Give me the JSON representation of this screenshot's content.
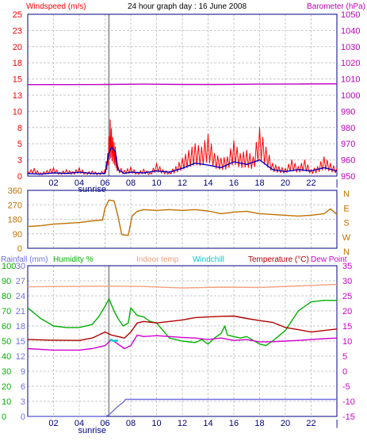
{
  "header": {
    "title": "24 hour graph day : 16 June 2008",
    "left_label": "Windspeed (m/s)",
    "right_label": "Barometer (hPa)"
  },
  "legend_bottom": {
    "rainfall": "Rainfall (mm)",
    "humidity": "Humidity %",
    "indoor": "Indoor temp",
    "windchill": "Windchill",
    "temperature": "Temperature (°C)",
    "dewpoint": "Dew Point"
  },
  "sunrise_label": "sunrise",
  "colors": {
    "frame": "#000080",
    "grid": "#c8c8c8",
    "gust": "#ff0000",
    "wind": "#0000c0",
    "barometer": "#c000c0",
    "direction": "#c07000",
    "rainfall": "#7070e0",
    "humidity": "#00b000",
    "indoor": "#f0a080",
    "windchill": "#00c8d0",
    "temperature": "#b00000",
    "dewpoint": "#d000d0",
    "sunrise_band": "#a0a0a0"
  },
  "x_ticks": [
    "02",
    "04",
    "06",
    "08",
    "10",
    "12",
    "14",
    "16",
    "18",
    "20",
    "22",
    "|"
  ],
  "chart_data": [
    {
      "type": "line",
      "name": "wind-barometer",
      "xlim": [
        0,
        24
      ],
      "left_axis": {
        "label": "Windspeed (m/s)",
        "ticks": [
          0,
          3,
          5,
          8,
          10,
          13,
          15,
          18,
          20,
          23,
          25
        ],
        "ylim": [
          0,
          25
        ]
      },
      "right_axis": {
        "label": "Barometer (hPa)",
        "ticks": [
          950,
          960,
          970,
          980,
          990,
          1000,
          1010,
          1020,
          1030,
          1040,
          1050
        ],
        "ylim": [
          950,
          1050
        ]
      },
      "sunrise_hour": 6.3,
      "series": [
        {
          "name": "gust",
          "axis": "left",
          "style": "spiky",
          "points": [
            [
              0,
              0.8
            ],
            [
              0.5,
              1.2
            ],
            [
              1,
              0.5
            ],
            [
              1.5,
              0.9
            ],
            [
              2,
              1.3
            ],
            [
              2.5,
              0.6
            ],
            [
              3,
              1.0
            ],
            [
              3.5,
              0.7
            ],
            [
              4,
              1.3
            ],
            [
              4.5,
              0.6
            ],
            [
              5,
              0.8
            ],
            [
              5.5,
              0.5
            ],
            [
              6,
              1.0
            ],
            [
              6.2,
              3.5
            ],
            [
              6.4,
              8.7
            ],
            [
              6.6,
              6.0
            ],
            [
              6.8,
              4.5
            ],
            [
              7.0,
              1.5
            ],
            [
              7.5,
              0.9
            ],
            [
              8,
              1.4
            ],
            [
              8.5,
              0.6
            ],
            [
              9,
              1.1
            ],
            [
              9.5,
              0.5
            ],
            [
              10,
              2.0
            ],
            [
              10.5,
              1.0
            ],
            [
              11,
              0.7
            ],
            [
              11.5,
              1.5
            ],
            [
              12,
              2.8
            ],
            [
              12.5,
              4.0
            ],
            [
              13,
              5.0
            ],
            [
              13.5,
              4.5
            ],
            [
              14,
              6.5
            ],
            [
              14.5,
              3.5
            ],
            [
              15,
              2.8
            ],
            [
              15.5,
              3.0
            ],
            [
              16,
              5.5
            ],
            [
              16.5,
              3.5
            ],
            [
              17,
              4.0
            ],
            [
              17.5,
              3.0
            ],
            [
              18,
              7.5
            ],
            [
              18.5,
              4.5
            ],
            [
              19,
              2.0
            ],
            [
              19.5,
              1.5
            ],
            [
              20,
              1.2
            ],
            [
              20.5,
              2.5
            ],
            [
              21,
              1.5
            ],
            [
              21.5,
              2.5
            ],
            [
              22,
              1.0
            ],
            [
              22.5,
              1.5
            ],
            [
              23,
              3.0
            ],
            [
              23.5,
              2.0
            ],
            [
              24,
              1.2
            ]
          ]
        },
        {
          "name": "wind",
          "axis": "left",
          "points": [
            [
              0,
              0.4
            ],
            [
              1,
              0.3
            ],
            [
              2,
              0.5
            ],
            [
              3,
              0.4
            ],
            [
              4,
              0.6
            ],
            [
              5,
              0.4
            ],
            [
              6,
              0.4
            ],
            [
              6.3,
              3.5
            ],
            [
              6.5,
              4.5
            ],
            [
              6.8,
              3.8
            ],
            [
              7.0,
              1.0
            ],
            [
              7.5,
              0.4
            ],
            [
              8,
              0.6
            ],
            [
              9,
              0.5
            ],
            [
              10,
              0.8
            ],
            [
              11,
              0.6
            ],
            [
              12,
              1.2
            ],
            [
              13,
              2.0
            ],
            [
              14,
              1.7
            ],
            [
              15,
              1.3
            ],
            [
              16,
              2.2
            ],
            [
              17,
              1.8
            ],
            [
              18,
              2.5
            ],
            [
              19,
              1.0
            ],
            [
              20,
              0.7
            ],
            [
              21,
              1.0
            ],
            [
              22,
              0.8
            ],
            [
              23,
              1.3
            ],
            [
              24,
              0.8
            ]
          ]
        },
        {
          "name": "barometer",
          "axis": "right",
          "points": [
            [
              0,
              1006.5
            ],
            [
              3,
              1006.5
            ],
            [
              6,
              1006.6
            ],
            [
              9,
              1006.8
            ],
            [
              12,
              1006.6
            ],
            [
              15,
              1006.6
            ],
            [
              18,
              1006.8
            ],
            [
              21,
              1006.9
            ],
            [
              24,
              1007.0
            ]
          ]
        }
      ]
    },
    {
      "type": "line",
      "name": "wind-direction",
      "xlim": [
        0,
        24
      ],
      "left_axis": {
        "ticks": [
          0,
          90,
          180,
          270,
          360
        ],
        "ylim": [
          0,
          360
        ]
      },
      "right_axis": {
        "ticks": [
          "N",
          "E",
          "S",
          "W",
          "N"
        ]
      },
      "series": [
        {
          "name": "direction",
          "points": [
            [
              0,
              135
            ],
            [
              1,
              140
            ],
            [
              2,
              150
            ],
            [
              3,
              155
            ],
            [
              4,
              160
            ],
            [
              5,
              170
            ],
            [
              5.8,
              175
            ],
            [
              6.0,
              250
            ],
            [
              6.3,
              300
            ],
            [
              6.7,
              295
            ],
            [
              7.0,
              200
            ],
            [
              7.3,
              85
            ],
            [
              7.8,
              80
            ],
            [
              8.1,
              200
            ],
            [
              8.5,
              230
            ],
            [
              9,
              240
            ],
            [
              10,
              235
            ],
            [
              11,
              240
            ],
            [
              12,
              235
            ],
            [
              13,
              240
            ],
            [
              14,
              232
            ],
            [
              15,
              215
            ],
            [
              16,
              225
            ],
            [
              17,
              230
            ],
            [
              18,
              215
            ],
            [
              19,
              210
            ],
            [
              20,
              205
            ],
            [
              21,
              200
            ],
            [
              22,
              205
            ],
            [
              23,
              215
            ],
            [
              23.5,
              245
            ],
            [
              24,
              210
            ]
          ]
        }
      ]
    },
    {
      "type": "line",
      "name": "temperature-humidity-rain",
      "xlim": [
        0,
        24
      ],
      "rain_axis": {
        "label": "Rainfall (mm)",
        "ticks": [
          0,
          3,
          6,
          9,
          12,
          15,
          18,
          21,
          24,
          27,
          30
        ],
        "ylim": [
          0,
          30
        ]
      },
      "humidity_axis": {
        "label": "Humidity %",
        "ticks": [
          0,
          10,
          20,
          30,
          40,
          50,
          60,
          70,
          80,
          90,
          100
        ],
        "ylim": [
          0,
          100
        ]
      },
      "temp_axis": {
        "label": "Temperature (°C)",
        "ticks": [
          -15,
          -10,
          -5,
          0,
          5,
          10,
          15,
          20,
          25,
          30,
          35
        ],
        "ylim": [
          -15,
          35
        ]
      },
      "series": [
        {
          "name": "indoor",
          "axis": "temp",
          "points": [
            [
              0,
              28
            ],
            [
              3,
              28.1
            ],
            [
              6,
              28.2
            ],
            [
              9,
              28.1
            ],
            [
              12,
              27.6
            ],
            [
              15,
              27.9
            ],
            [
              18,
              27.8
            ],
            [
              21,
              28.3
            ],
            [
              24,
              28.8
            ]
          ]
        },
        {
          "name": "humidity",
          "axis": "humidity",
          "points": [
            [
              0,
              72
            ],
            [
              1,
              65
            ],
            [
              2,
              60
            ],
            [
              3,
              59
            ],
            [
              4,
              59
            ],
            [
              5,
              61
            ],
            [
              5.5,
              66
            ],
            [
              6,
              73
            ],
            [
              6.3,
              78
            ],
            [
              6.7,
              70
            ],
            [
              7,
              65
            ],
            [
              7.4,
              60
            ],
            [
              7.8,
              62
            ],
            [
              8,
              72
            ],
            [
              8.5,
              67
            ],
            [
              9,
              66
            ],
            [
              9.5,
              63
            ],
            [
              10,
              62
            ],
            [
              10.5,
              57
            ],
            [
              11,
              52
            ],
            [
              12,
              50
            ],
            [
              13,
              49
            ],
            [
              13.5,
              51
            ],
            [
              14,
              48
            ],
            [
              14.5,
              52
            ],
            [
              15,
              55
            ],
            [
              15.3,
              60
            ],
            [
              15.5,
              54
            ],
            [
              16,
              53
            ],
            [
              16.5,
              52
            ],
            [
              17,
              53
            ],
            [
              18,
              48
            ],
            [
              18.5,
              47
            ],
            [
              19,
              50
            ],
            [
              20,
              57
            ],
            [
              21,
              70
            ],
            [
              22,
              76
            ],
            [
              23,
              77
            ],
            [
              24,
              77
            ]
          ]
        },
        {
          "name": "temperature",
          "axis": "temp",
          "points": [
            [
              0,
              10.5
            ],
            [
              2,
              10.3
            ],
            [
              4,
              10.2
            ],
            [
              5,
              11
            ],
            [
              6,
              13
            ],
            [
              6.5,
              12
            ],
            [
              7,
              11.5
            ],
            [
              7.5,
              11
            ],
            [
              8,
              13
            ],
            [
              8.5,
              16
            ],
            [
              9,
              16.5
            ],
            [
              10,
              16
            ],
            [
              11,
              16.5
            ],
            [
              12,
              17
            ],
            [
              13,
              17.8
            ],
            [
              14,
              18
            ],
            [
              15,
              18.2
            ],
            [
              16,
              18.3
            ],
            [
              17,
              17.5
            ],
            [
              18,
              16.8
            ],
            [
              19,
              16.2
            ],
            [
              20,
              14.5
            ],
            [
              21,
              13.8
            ],
            [
              22,
              13
            ],
            [
              23,
              13.5
            ],
            [
              24,
              14
            ]
          ]
        },
        {
          "name": "dewpoint",
          "axis": "temp",
          "points": [
            [
              0,
              7.5
            ],
            [
              2,
              7
            ],
            [
              4,
              7
            ],
            [
              5,
              7.5
            ],
            [
              6,
              8.5
            ],
            [
              6.5,
              10.5
            ],
            [
              7,
              9
            ],
            [
              7.5,
              7.5
            ],
            [
              8,
              8.5
            ],
            [
              8.5,
              12
            ],
            [
              9,
              11.5
            ],
            [
              10,
              11.8
            ],
            [
              11,
              11.5
            ],
            [
              12,
              11.2
            ],
            [
              13,
              11
            ],
            [
              14,
              10.5
            ],
            [
              15,
              11
            ],
            [
              16,
              10.2
            ],
            [
              17,
              10.5
            ],
            [
              18,
              9.7
            ],
            [
              19,
              9.8
            ],
            [
              20,
              10
            ],
            [
              21,
              10.2
            ],
            [
              22,
              10.5
            ],
            [
              23,
              10.8
            ],
            [
              24,
              11
            ]
          ]
        },
        {
          "name": "windchill",
          "axis": "temp",
          "points": [
            [
              6.4,
              10.5
            ],
            [
              6.7,
              10.0
            ],
            [
              7.0,
              10.2
            ]
          ]
        },
        {
          "name": "rainfall",
          "axis": "rain",
          "points": [
            [
              0,
              0
            ],
            [
              6,
              0
            ],
            [
              6.3,
              0.3
            ],
            [
              7.0,
              2.0
            ],
            [
              7.4,
              2.8
            ],
            [
              7.6,
              3.4
            ],
            [
              8,
              3.4
            ],
            [
              24,
              3.4
            ]
          ]
        }
      ]
    }
  ]
}
